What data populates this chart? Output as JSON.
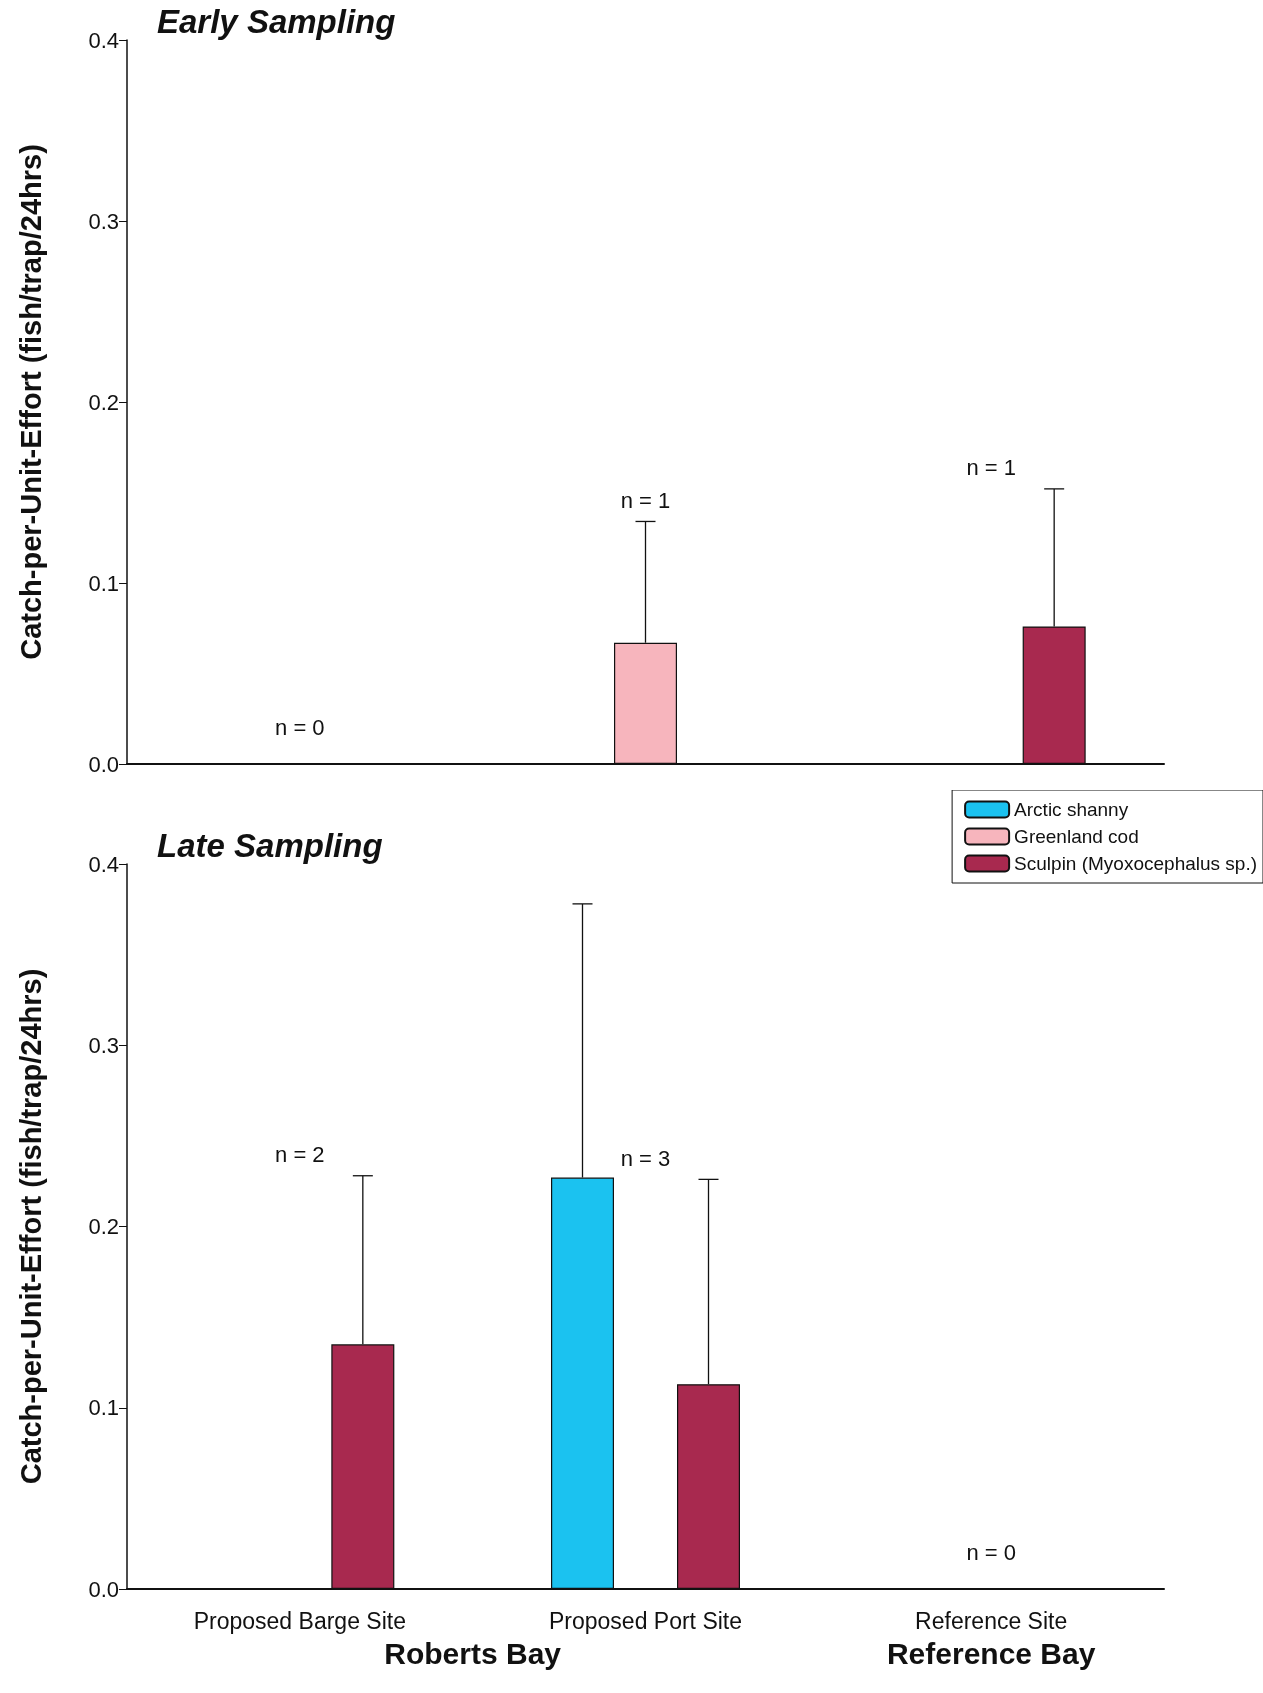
{
  "chart_data": [
    {
      "type": "bar",
      "title": "Early Sampling",
      "ylabel": "Catch-per-Unit-Effort (fish/trap/24hrs)",
      "categories": [
        null,
        null,
        null
      ],
      "tick_labels": "y",
      "series": [
        {
          "color": "#1bc2f0",
          "values": [
            null,
            null,
            null
          ],
          "errors": [
            null,
            null,
            null
          ]
        },
        {
          "color": "#f7b5bd",
          "values": [
            null,
            0.067,
            null
          ],
          "errors": [
            null,
            [
              0.067,
              0.134
            ],
            null
          ]
        },
        {
          "color": "#a8294f",
          "values": [
            null,
            null,
            0.076
          ],
          "errors": [
            null,
            null,
            [
              0.076,
              0.152
            ]
          ]
        }
      ],
      "ylim": [
        0,
        0.4
      ],
      "yticks": [
        {
          "value": 0,
          "label": "0.0"
        },
        0.1,
        0.2,
        0.3,
        0.4
      ],
      "grid": false,
      "legend": false,
      "annotations": [
        "n = 0",
        "n = 1",
        "n = 1"
      ]
    },
    {
      "type": "bar",
      "title": "Late Sampling",
      "ylabel": "Catch-per-Unit-Effort (fish/trap/24hrs)",
      "categories": [
        "Proposed Barge Site",
        "Proposed Port Site",
        "Reference Site"
      ],
      "series": [
        {
          "name": "Arctic shanny",
          "color": "#1bc2f0",
          "values": [
            null,
            0.227,
            null
          ],
          "errors": [
            null,
            [
              0.227,
              0.378
            ],
            null
          ]
        },
        {
          "name": "Greenland cod",
          "color": "#f7b5bd",
          "values": [
            null,
            null,
            null
          ],
          "errors": [
            null,
            null,
            null
          ]
        },
        {
          "name": "Sculpin (Myoxocephalus sp.)",
          "color": "#a8294f",
          "values": [
            0.135,
            0.113,
            null
          ],
          "errors": [
            [
              0.135,
              0.228
            ],
            [
              0.113,
              0.226
            ],
            null
          ]
        }
      ],
      "ylim": [
        0,
        0.4
      ],
      "yticks": [
        {
          "value": 0,
          "label": "0.0"
        },
        0.1,
        0.2,
        0.3,
        0.4
      ],
      "grid": false,
      "legend": "top right",
      "annotations": [
        "n = 2",
        "n = 3",
        "n = 0",
        "Roberts Bay",
        "Reference Bay"
      ]
    }
  ]
}
